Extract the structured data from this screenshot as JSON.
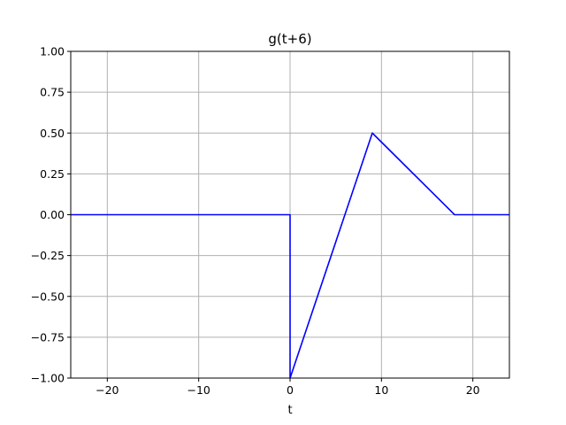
{
  "chart_data": {
    "type": "line",
    "title": "g(t+6)",
    "xlabel": "t",
    "ylabel": "",
    "xlim": [
      -24,
      24
    ],
    "ylim": [
      -1.0,
      1.0
    ],
    "grid": true,
    "x_ticks": [
      -20,
      -10,
      0,
      10,
      20
    ],
    "x_tick_labels": [
      "−20",
      "−10",
      "0",
      "10",
      "20"
    ],
    "y_ticks": [
      -1.0,
      -0.75,
      -0.5,
      -0.25,
      0.0,
      0.25,
      0.5,
      0.75,
      1.0
    ],
    "y_tick_labels": [
      "−1.00",
      "−0.75",
      "−0.50",
      "−0.25",
      "0.00",
      "0.25",
      "0.50",
      "0.75",
      "1.00"
    ],
    "series": [
      {
        "color": "#0000ff",
        "x": [
          -24,
          0,
          0,
          9,
          18,
          24
        ],
        "y": [
          0,
          0,
          -1,
          0.5,
          0,
          0
        ]
      }
    ]
  }
}
